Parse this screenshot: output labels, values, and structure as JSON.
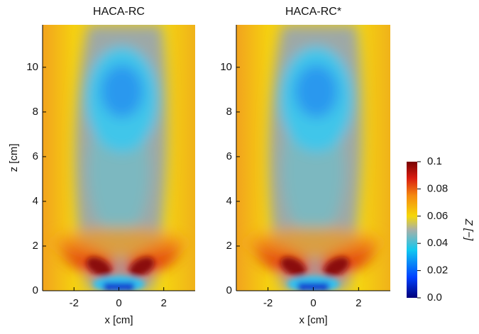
{
  "chart_data": [
    {
      "type": "heatmap",
      "title": "HACA-RC",
      "xlabel": "x [cm]",
      "ylabel": "z [cm]",
      "xlim": [
        -3.4,
        3.4
      ],
      "ylim": [
        0,
        11.9
      ],
      "xticks": [
        -2,
        0,
        2
      ],
      "yticks": [
        0,
        2,
        4,
        6,
        8,
        10
      ]
    },
    {
      "type": "heatmap",
      "title": "HACA-RC*",
      "xlabel": "x [cm]",
      "xlim": [
        -3.4,
        3.4
      ],
      "ylim": [
        0,
        11.9
      ],
      "xticks": [
        -2,
        0,
        2
      ],
      "yticks": [
        0,
        2,
        4,
        6,
        8,
        10
      ]
    }
  ],
  "colorbar": {
    "label": "Z [−]",
    "lim": [
      0,
      0.1
    ],
    "ticks": [
      {
        "value": 0,
        "label": "0.0"
      },
      0.02,
      0.04,
      0.06,
      0.08,
      0.1
    ]
  }
}
